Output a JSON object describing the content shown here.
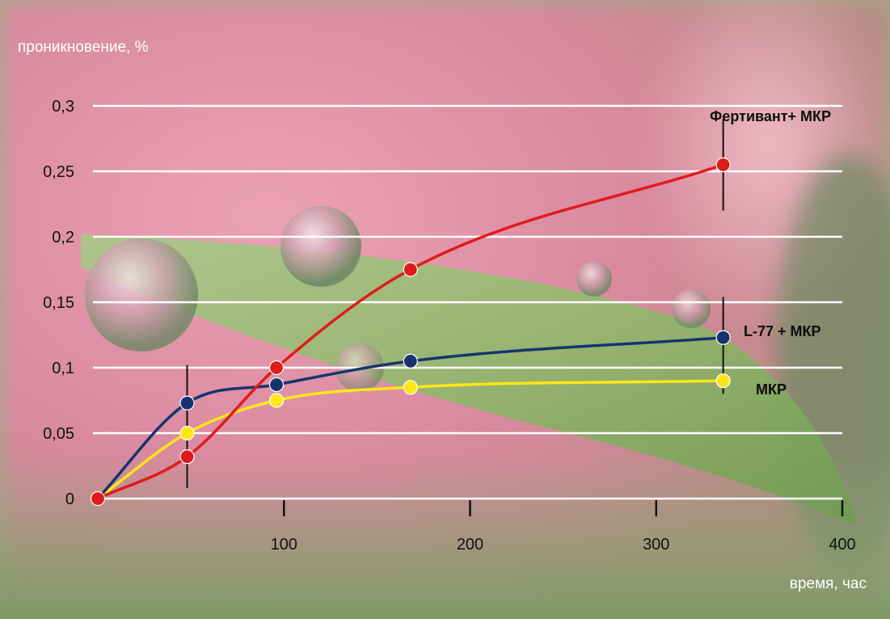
{
  "chart_data": {
    "type": "line",
    "xlabel": "время, час",
    "ylabel": "проникновение, %",
    "xlim": [
      0,
      400
    ],
    "ylim": [
      0,
      0.3
    ],
    "x_ticks": [
      {
        "value": 100,
        "label": "100"
      },
      {
        "value": 200,
        "label": "200"
      },
      {
        "value": 300,
        "label": "300"
      },
      {
        "value": 400,
        "label": "400"
      }
    ],
    "y_ticks": [
      {
        "value": 0,
        "label": "0"
      },
      {
        "value": 0.05,
        "label": "0,05"
      },
      {
        "value": 0.1,
        "label": "0,1"
      },
      {
        "value": 0.15,
        "label": "0,15"
      },
      {
        "value": 0.2,
        "label": "0,2"
      },
      {
        "value": 0.25,
        "label": "0,25"
      },
      {
        "value": 0.3,
        "label": "0,3"
      }
    ],
    "grid": true,
    "series": [
      {
        "name": "Фертивант+ МКР",
        "color": "#e01b1b",
        "x": [
          0,
          48,
          96,
          168,
          336
        ],
        "y": [
          0,
          0.032,
          0.1,
          0.175,
          0.255
        ],
        "error_bars": [
          {
            "x": 336,
            "low": 0.22,
            "high": 0.29
          }
        ]
      },
      {
        "name": "L-77 + МКР",
        "color": "#17336e",
        "x": [
          0,
          48,
          96,
          168,
          336
        ],
        "y": [
          0,
          0.073,
          0.087,
          0.105,
          0.123
        ],
        "error_bars": [
          {
            "x": 48,
            "low": 0.008,
            "high": 0.102
          },
          {
            "x": 336,
            "low": 0.08,
            "high": 0.154
          }
        ]
      },
      {
        "name": "МКР",
        "color": "#ffe619",
        "x": [
          0,
          48,
          96,
          168,
          336
        ],
        "y": [
          0,
          0.05,
          0.075,
          0.085,
          0.09
        ],
        "error_bars": []
      }
    ]
  }
}
